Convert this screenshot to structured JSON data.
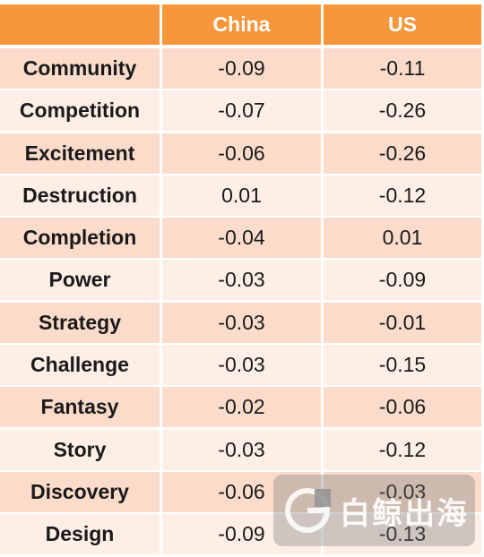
{
  "chart_data": {
    "type": "table",
    "columns": [
      "",
      "China",
      "US"
    ],
    "rows": [
      {
        "label": "Community",
        "china": "-0.09",
        "us": "-0.11"
      },
      {
        "label": "Competition",
        "china": "-0.07",
        "us": "-0.26"
      },
      {
        "label": "Excitement",
        "china": "-0.06",
        "us": "-0.26"
      },
      {
        "label": "Destruction",
        "china": "0.01",
        "us": "-0.12"
      },
      {
        "label": "Completion",
        "china": "-0.04",
        "us": "0.01"
      },
      {
        "label": "Power",
        "china": "-0.03",
        "us": "-0.09"
      },
      {
        "label": "Strategy",
        "china": "-0.03",
        "us": "-0.01"
      },
      {
        "label": "Challenge",
        "china": "-0.03",
        "us": "-0.15"
      },
      {
        "label": "Fantasy",
        "china": "-0.02",
        "us": "-0.06"
      },
      {
        "label": "Story",
        "china": "-0.03",
        "us": "-0.12"
      },
      {
        "label": "Discovery",
        "china": "-0.06",
        "us": "-0.03"
      },
      {
        "label": "Design",
        "china": "-0.09",
        "us": "-0.13"
      }
    ],
    "colors": {
      "header": "#f7963a",
      "row_odd": "#fbdccb",
      "row_even": "#fdeee6"
    }
  },
  "watermark": {
    "text": "白鲸出海",
    "icon": "whale-logo-icon"
  }
}
